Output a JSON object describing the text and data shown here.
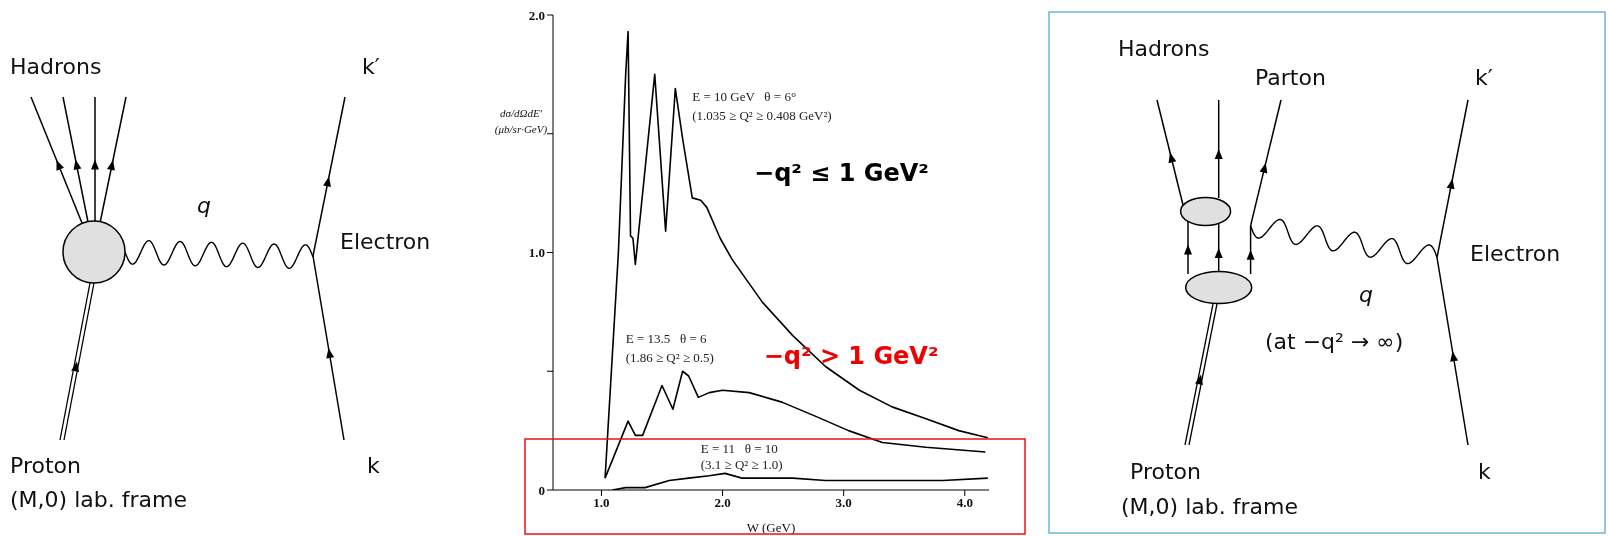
{
  "chart_data": [
    {
      "type": "other",
      "annotations": [
        "Hadrons",
        "k′",
        "q",
        "Electron",
        "Proton",
        "(M,0) lab. frame",
        "k"
      ]
    },
    {
      "type": "line",
      "xlabel": "W (GeV)",
      "ylabel": "dσ/dΩdE′ (μb/sr·GeV)",
      "xlim": [
        0.6,
        4.2
      ],
      "ylim": [
        0,
        2
      ],
      "xticks": [
        {
          "value": 1,
          "label": "1.0"
        },
        {
          "value": 2,
          "label": "2.0"
        },
        {
          "value": 3,
          "label": "3.0"
        },
        {
          "value": 4,
          "label": "4.0"
        }
      ],
      "yticks": [
        0,
        {
          "value": 0.5,
          "label": null
        },
        {
          "value": 1,
          "label": "1.0"
        },
        {
          "value": 1.5,
          "label": null
        },
        {
          "value": 2,
          "label": "2.0"
        }
      ],
      "series": [
        {
          "color": "#000000",
          "x": [
            1.03,
            1.14,
            1.2,
            1.22,
            1.24,
            1.26,
            1.28,
            1.44,
            1.53,
            1.61,
            1.67,
            1.75,
            1.82,
            1.87,
            1.98,
            2.08,
            2.33,
            2.58,
            2.85,
            3.13,
            3.4,
            3.68,
            3.95,
            4.19
          ],
          "values": [
            0.05,
            1.0,
            1.75,
            1.93,
            1.07,
            1.06,
            0.95,
            1.75,
            1.09,
            1.69,
            1.48,
            1.23,
            1.22,
            1.19,
            1.06,
            0.97,
            0.79,
            0.65,
            0.52,
            0.42,
            0.35,
            0.3,
            0.25,
            0.22
          ]
        },
        {
          "color": "#000000",
          "x": [
            1.03,
            1.22,
            1.28,
            1.34,
            1.5,
            1.59,
            1.67,
            1.72,
            1.8,
            1.89,
            2.0,
            2.22,
            2.49,
            2.77,
            3.04,
            3.32,
            3.68,
            4.17
          ],
          "values": [
            0.05,
            0.29,
            0.23,
            0.23,
            0.44,
            0.34,
            0.5,
            0.48,
            0.39,
            0.41,
            0.42,
            0.41,
            0.37,
            0.31,
            0.25,
            0.2,
            0.18,
            0.16
          ]
        },
        {
          "color": "#000000",
          "x": [
            1.09,
            1.2,
            1.36,
            1.56,
            1.72,
            1.89,
            2.02,
            2.16,
            2.58,
            2.85,
            3.26,
            3.82,
            4.19
          ],
          "values": [
            0.0,
            0.01,
            0.01,
            0.04,
            0.05,
            0.06,
            0.07,
            0.05,
            0.05,
            0.04,
            0.04,
            0.04,
            0.05
          ]
        }
      ],
      "annotations": [
        "E = 10 GeV   θ = 6°",
        "(1.035 ≥ Q² ≥ 0.408 GeV²)",
        "E = 13.5   θ = 6",
        "(1.86 ≥ Q² ≥ 0.5)",
        "E = 11   θ = 10",
        "(3.1 ≥ Q² ≥ 1.0)",
        "−q² ≤ 1 GeV²",
        "−q² > 1 GeV²"
      ]
    },
    {
      "type": "other",
      "annotations": [
        "Hadrons",
        "Parton",
        "k′",
        "Electron",
        "q",
        "(at −q² → ∞)",
        "Proton",
        "(M,0) lab. frame",
        "k"
      ]
    }
  ]
}
